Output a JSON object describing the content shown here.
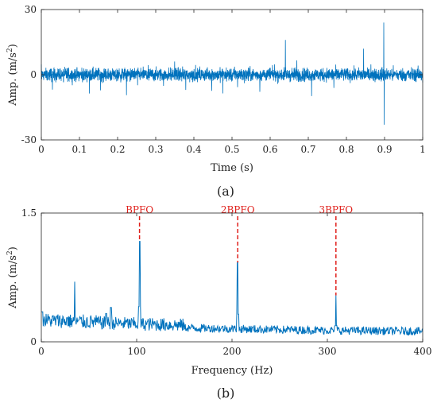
{
  "chart_data": [
    {
      "type": "line",
      "panel_label": "(a)",
      "xlabel": "Time (s)",
      "ylabel": "Amp. (m/s²)",
      "ylabel_base": "Amp. (m/s",
      "ylabel_sup": "2",
      "ylabel_close": ")",
      "xlim": [
        0,
        1
      ],
      "ylim": [
        -30,
        30
      ],
      "xticks": [
        0,
        0.1,
        0.2,
        0.3,
        0.4,
        0.5,
        0.6,
        0.7,
        0.8,
        0.9,
        1
      ],
      "xtick_labels": [
        "0",
        "0.1",
        "0.2",
        "0.3",
        "0.4",
        "0.5",
        "0.6",
        "0.7",
        "0.8",
        "0.9",
        "1"
      ],
      "yticks": [
        -30,
        0,
        30
      ],
      "ytick_labels": [
        "-30",
        "0",
        "30"
      ],
      "grid": false,
      "series": [
        {
          "color": "#0072bd",
          "description": "vibration signal, noise ~±5 with periodic impulses",
          "peaks": [
            {
              "x": 0.64,
              "y": 16
            },
            {
              "x": 0.845,
              "y": 12
            },
            {
              "x": 0.898,
              "y": 24
            },
            {
              "x": 0.899,
              "y": -23
            }
          ]
        }
      ]
    },
    {
      "type": "line",
      "panel_label": "(b)",
      "xlabel": "Frequency (Hz)",
      "ylabel": "Amp. (m/s²)",
      "ylabel_base": "Amp. (m/s",
      "ylabel_sup": "2",
      "ylabel_close": ")",
      "xlim": [
        0,
        400
      ],
      "ylim": [
        0,
        1.5
      ],
      "xticks": [
        0,
        100,
        200,
        300,
        400
      ],
      "xtick_labels": [
        "0",
        "100",
        "200",
        "300",
        "400"
      ],
      "yticks": [
        0,
        1.5
      ],
      "ytick_labels": [
        "0",
        "1.5"
      ],
      "grid": false,
      "series": [
        {
          "color": "#0072bd",
          "peaks": [
            {
              "x": 35,
              "y": 0.7
            },
            {
              "x": 103,
              "y": 1.17
            },
            {
              "x": 206,
              "y": 0.92
            },
            {
              "x": 309,
              "y": 0.54
            }
          ]
        }
      ],
      "annotations": [
        {
          "label": "BPFO",
          "x": 103,
          "color": "#e0201b"
        },
        {
          "label": "2BPFO",
          "x": 206,
          "color": "#e0201b"
        },
        {
          "label": "3BPFO",
          "x": 309,
          "color": "#e0201b"
        }
      ]
    }
  ]
}
